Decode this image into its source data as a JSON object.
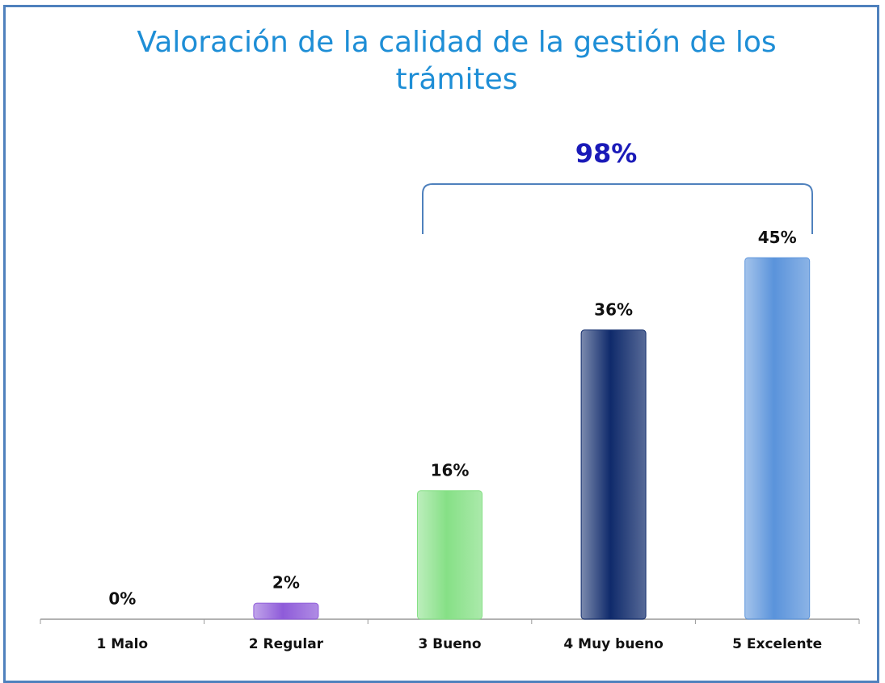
{
  "chart_data": {
    "type": "bar",
    "title": "Valoración de la calidad de la gestión de los trámites",
    "categories": [
      "1 Malo",
      "2 Regular",
      "3 Bueno",
      "4 Muy bueno",
      "5 Excelente"
    ],
    "values": [
      0,
      2,
      16,
      36,
      45
    ],
    "value_labels": [
      "0%",
      "2%",
      "16%",
      "36%",
      "45%"
    ],
    "colors": [
      "#c0504d",
      "#8e5bd9",
      "#86e086",
      "#0f2a6b",
      "#5a93db"
    ],
    "annotation": "98%"
  }
}
